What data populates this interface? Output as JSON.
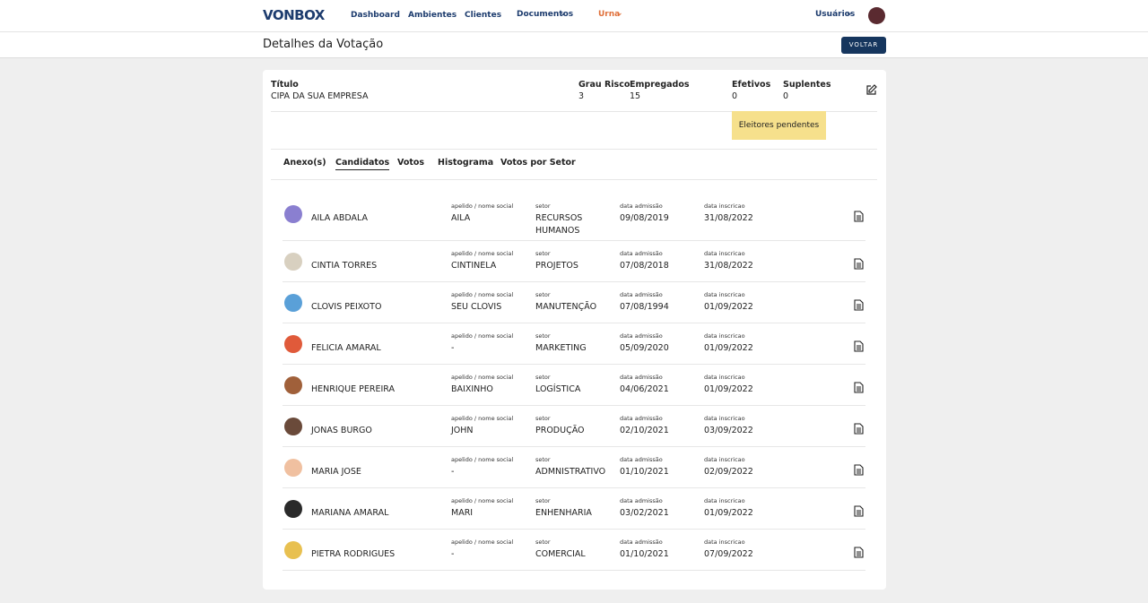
{
  "nav": {
    "logo": "VONBOX",
    "links": [
      "Dashboard",
      "Ambientes",
      "Clientes"
    ],
    "menus": [
      "Documentos",
      "Urna"
    ],
    "users": "Usuários"
  },
  "header": {
    "title": "Detalhes da Votação",
    "back": "VOLTAR"
  },
  "summary": {
    "title": {
      "label": "Título",
      "value": "CIPA DA SUA EMPRESA"
    },
    "fields": [
      {
        "label": "Grau Risco",
        "value": 3
      },
      {
        "label": "Empregados",
        "value": 15
      },
      {
        "label": "Efetivos",
        "value": 0
      },
      {
        "label": "Suplentes",
        "value": 0
      }
    ],
    "pending": "Eleitores pendentes"
  },
  "tabs": [
    "Anexo(s)",
    "Candidatos",
    "Votos",
    "Histograma",
    "Votos por Setor"
  ],
  "active_tab": 1,
  "candidates": {
    "columns": [
      "apelido / nome social",
      "setor",
      "data admissão",
      "data inscricao"
    ],
    "rows": [
      [
        "AILA ABDALA",
        "AILA",
        "RECURSOS HUMANOS",
        "09/08/2019",
        "31/08/2022"
      ],
      [
        "CINTIA TORRES",
        "CINTINELA",
        "PROJETOS",
        "07/08/2018",
        "31/08/2022"
      ],
      [
        "CLOVIS PEIXOTO",
        "SEU CLOVIS",
        "MANUTENÇÃO",
        "07/08/1994",
        "01/09/2022"
      ],
      [
        "FELICIA AMARAL",
        "-",
        "MARKETING",
        "05/09/2020",
        "01/09/2022"
      ],
      [
        "HENRIQUE PEREIRA",
        "BAIXINHO",
        "LOGÍSTICA",
        "04/06/2021",
        "01/09/2022"
      ],
      [
        "JONAS BURGO",
        "JOHN",
        "PRODUÇÃO",
        "02/10/2021",
        "03/09/2022"
      ],
      [
        "MARIA JOSE",
        "-",
        "ADMNISTRATIVO",
        "01/10/2021",
        "02/09/2022"
      ],
      [
        "MARIANA AMARAL",
        "MARI",
        "ENHENHARIA",
        "03/02/2021",
        "01/09/2022"
      ],
      [
        "PIETRA RODRIGUES",
        "-",
        "COMERCIAL",
        "01/10/2021",
        "07/09/2022"
      ]
    ]
  }
}
